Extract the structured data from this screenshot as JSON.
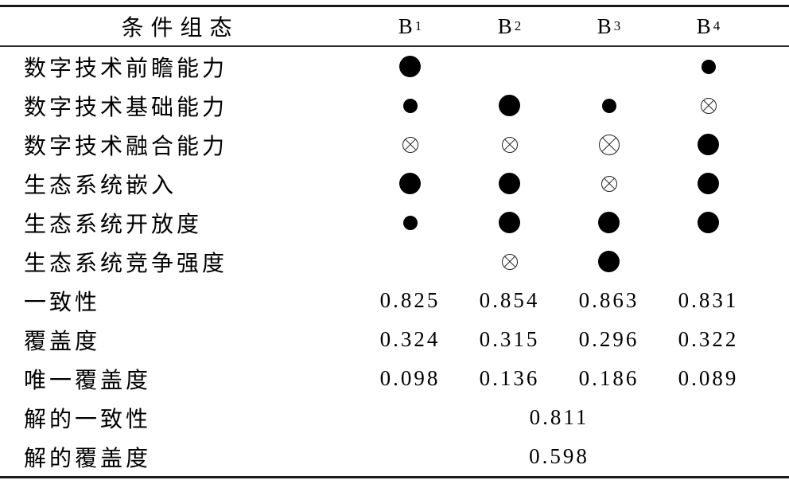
{
  "colors": {
    "background": "#ffffff",
    "text": "#000000",
    "rule_line": "#1a1a1a"
  },
  "table": {
    "header": {
      "label": "条件组态",
      "columns": [
        {
          "base": "B",
          "sub": "1"
        },
        {
          "base": "B",
          "sub": "2"
        },
        {
          "base": "B",
          "sub": "3"
        },
        {
          "base": "B",
          "sub": "4"
        }
      ]
    },
    "symbol_codes": {
      "large-filled": "core condition present (large black circle)",
      "small-filled": "peripheral condition present (small black circle)",
      "large-cross": "core condition absent (large crossed circle)",
      "small-cross": "peripheral condition absent (small crossed circle)",
      "none": "blank / irrelevant"
    },
    "condition_rows": [
      {
        "label": "数字技术前瞻能力",
        "cells": [
          "large-filled",
          "none",
          "none",
          "small-filled"
        ]
      },
      {
        "label": "数字技术基础能力",
        "cells": [
          "small-filled",
          "large-filled",
          "small-filled",
          "small-cross"
        ]
      },
      {
        "label": "数字技术融合能力",
        "cells": [
          "small-cross",
          "small-cross",
          "large-cross",
          "large-filled"
        ]
      },
      {
        "label": "生态系统嵌入",
        "cells": [
          "large-filled",
          "large-filled",
          "small-cross",
          "large-filled"
        ]
      },
      {
        "label": "生态系统开放度",
        "cells": [
          "small-filled",
          "large-filled",
          "large-filled",
          "large-filled"
        ]
      },
      {
        "label": "生态系统竞争强度",
        "cells": [
          "none",
          "small-cross",
          "large-filled",
          "none"
        ]
      }
    ],
    "stat_rows": [
      {
        "label": "一致性",
        "values": [
          "0.825",
          "0.854",
          "0.863",
          "0.831"
        ]
      },
      {
        "label": "覆盖度",
        "values": [
          "0.324",
          "0.315",
          "0.296",
          "0.322"
        ]
      },
      {
        "label": "唯一覆盖度",
        "values": [
          "0.098",
          "0.136",
          "0.186",
          "0.089"
        ]
      }
    ],
    "solution_rows": [
      {
        "label": "解的一致性",
        "value": "0.811"
      },
      {
        "label": "解的覆盖度",
        "value": "0.598"
      }
    ]
  },
  "chart_data": {
    "type": "table",
    "title": "条件组态",
    "columns": [
      "条件组态",
      "B1",
      "B2",
      "B3",
      "B4"
    ],
    "rows": [
      [
        "数字技术前瞻能力",
        "large-filled",
        "",
        "",
        "small-filled"
      ],
      [
        "数字技术基础能力",
        "small-filled",
        "large-filled",
        "small-filled",
        "small-cross"
      ],
      [
        "数字技术融合能力",
        "small-cross",
        "small-cross",
        "large-cross",
        "large-filled"
      ],
      [
        "生态系统嵌入",
        "large-filled",
        "large-filled",
        "small-cross",
        "large-filled"
      ],
      [
        "生态系统开放度",
        "small-filled",
        "large-filled",
        "large-filled",
        "large-filled"
      ],
      [
        "生态系统竞争强度",
        "",
        "small-cross",
        "large-filled",
        ""
      ],
      [
        "一致性",
        0.825,
        0.854,
        0.863,
        0.831
      ],
      [
        "覆盖度",
        0.324,
        0.315,
        0.296,
        0.322
      ],
      [
        "唯一覆盖度",
        0.098,
        0.136,
        0.186,
        0.089
      ],
      [
        "解的一致性",
        0.811,
        "",
        "",
        ""
      ],
      [
        "解的覆盖度",
        0.598,
        "",
        "",
        ""
      ]
    ]
  }
}
